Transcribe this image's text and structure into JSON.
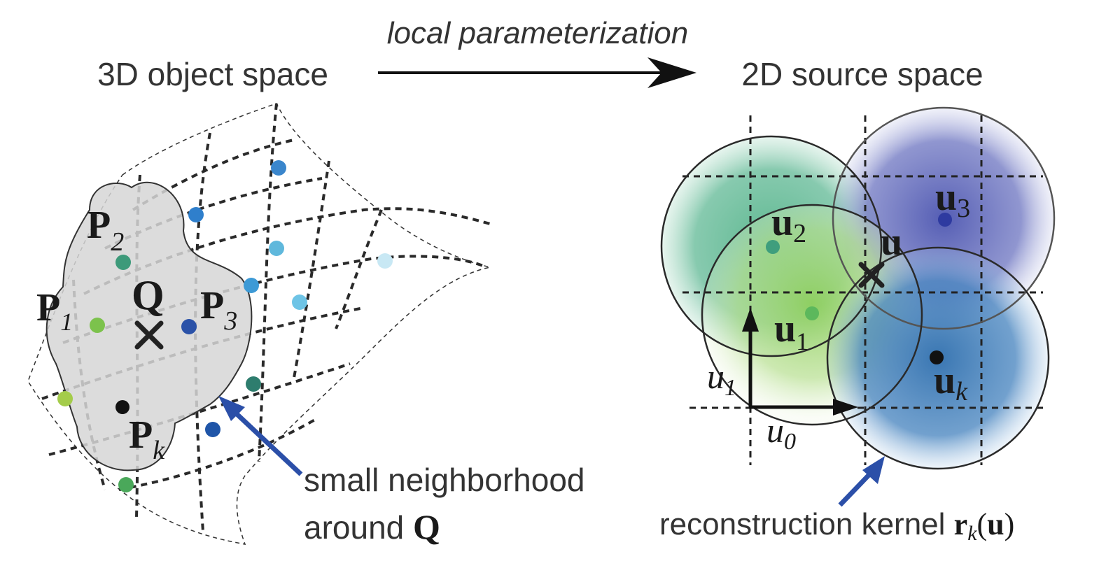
{
  "diagram": {
    "top_caption": "local parameterization",
    "left_title": "3D object space",
    "right_title": "2D source space",
    "left": {
      "point_labels": {
        "p2": {
          "main": "P",
          "sub": "2"
        },
        "p1": {
          "main": "P",
          "sub": "1"
        },
        "p3": {
          "main": "P",
          "sub": "3"
        },
        "pk": {
          "main": "P",
          "sub": "k"
        },
        "q": "Q"
      },
      "annotation": {
        "line1": "small neighborhood",
        "line2_prefix": "around ",
        "line2_bold": "Q"
      }
    },
    "right": {
      "labels": {
        "u2": {
          "main": "u",
          "sub": "2"
        },
        "u3": {
          "main": "u",
          "sub": "3"
        },
        "u1": {
          "main": "u",
          "sub": "1"
        },
        "uk": {
          "main": "u",
          "sub": "k"
        },
        "u": "u",
        "axis_u1": {
          "main": "u",
          "sub": "1"
        },
        "axis_u0": {
          "main": "u",
          "sub": "0"
        }
      },
      "annotation": {
        "text": "reconstruction kernel ",
        "formula_r": "r",
        "formula_k": "k",
        "formula_open": "(",
        "formula_u": "u",
        "formula_close": ")"
      }
    },
    "colors": {
      "arrow_blue": "#2b4fa8",
      "grid_dash": "#2a2a2a",
      "neighborhood_fill": "#d6d6d6",
      "kernel_green": "#4aa87a",
      "kernel_lightgreen": "#8ccc66",
      "kernel_purple": "#5a64b8",
      "kernel_blue": "#3a7ab8"
    }
  }
}
